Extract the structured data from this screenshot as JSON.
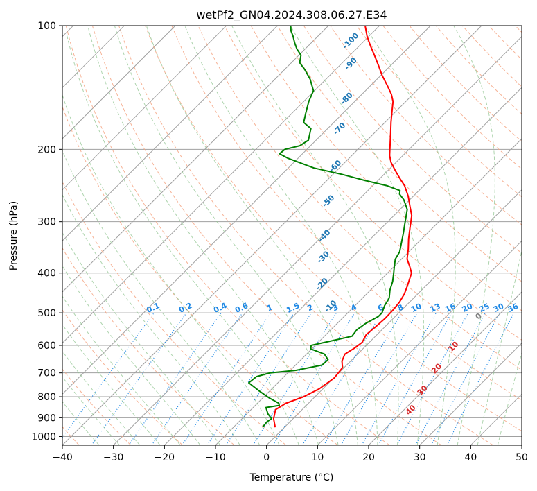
{
  "chart_data": {
    "type": "line",
    "subtype": "skew-t log-p diagram",
    "title": "wetPf2_GN04.2024.308.06.27.E34",
    "xlabel": "Temperature (°C)",
    "ylabel": "Pressure (hPa)",
    "xlim": [
      -40,
      50
    ],
    "ylim": [
      1050,
      100
    ],
    "y_scale": "log",
    "x_ticks": [
      -40,
      -30,
      -20,
      -10,
      0,
      10,
      20,
      30,
      40,
      50
    ],
    "y_ticks": [
      100,
      200,
      300,
      400,
      500,
      600,
      700,
      800,
      900,
      1000
    ],
    "grid": true,
    "series": [
      {
        "role": "temperature",
        "color": "#ff0000",
        "points": [
          [
            -1.8,
            950
          ],
          [
            -3.8,
            905
          ],
          [
            -5.2,
            860
          ],
          [
            -4.4,
            830
          ],
          [
            -2.2,
            800
          ],
          [
            -0.7,
            765
          ],
          [
            0.1,
            720
          ],
          [
            -0.3,
            680
          ],
          [
            -1.7,
            655
          ],
          [
            -2.5,
            630
          ],
          [
            -1.8,
            610
          ],
          [
            -1.4,
            590
          ],
          [
            -2.1,
            565
          ],
          [
            -1.8,
            540
          ],
          [
            -1.6,
            515
          ],
          [
            -1.7,
            490
          ],
          [
            -2.0,
            470
          ],
          [
            -2.6,
            450
          ],
          [
            -3.6,
            430
          ],
          [
            -5.3,
            400
          ],
          [
            -7.0,
            385
          ],
          [
            -8.9,
            370
          ],
          [
            -10.6,
            350
          ],
          [
            -12.6,
            330
          ],
          [
            -14.5,
            310
          ],
          [
            -16.5,
            290
          ],
          [
            -18.7,
            275
          ],
          [
            -21.0,
            260
          ],
          [
            -23.8,
            245
          ],
          [
            -26.2,
            235
          ],
          [
            -28.6,
            225
          ],
          [
            -31.0,
            215
          ],
          [
            -32.6,
            207
          ],
          [
            -34.6,
            195
          ],
          [
            -36.9,
            182
          ],
          [
            -38.8,
            172
          ],
          [
            -40.7,
            162
          ],
          [
            -42.5,
            153
          ],
          [
            -44.2,
            147
          ],
          [
            -46.7,
            140
          ],
          [
            -49.8,
            132
          ],
          [
            -52.4,
            125
          ],
          [
            -55.2,
            118
          ],
          [
            -57.8,
            112
          ],
          [
            -60.4,
            106
          ],
          [
            -62.8,
            100
          ]
        ]
      },
      {
        "role": "dewpoint",
        "color": "#008000",
        "points": [
          [
            -4.3,
            950
          ],
          [
            -4.5,
            920
          ],
          [
            -4.2,
            905
          ],
          [
            -5.9,
            880
          ],
          [
            -7.5,
            850
          ],
          [
            -5.3,
            840
          ],
          [
            -5.8,
            830
          ],
          [
            -8.8,
            805
          ],
          [
            -12.0,
            775
          ],
          [
            -15.7,
            740
          ],
          [
            -15.4,
            715
          ],
          [
            -13.5,
            700
          ],
          [
            -8.9,
            690
          ],
          [
            -4.8,
            670
          ],
          [
            -4.7,
            650
          ],
          [
            -6.5,
            630
          ],
          [
            -10.2,
            612
          ],
          [
            -10.8,
            600
          ],
          [
            -7.7,
            585
          ],
          [
            -4.6,
            570
          ],
          [
            -4.9,
            550
          ],
          [
            -4.4,
            530
          ],
          [
            -3.3,
            510
          ],
          [
            -3.3,
            500
          ],
          [
            -4.2,
            480
          ],
          [
            -4.8,
            460
          ],
          [
            -6.2,
            440
          ],
          [
            -7.3,
            420
          ],
          [
            -8.8,
            400
          ],
          [
            -10.0,
            385
          ],
          [
            -11.2,
            370
          ],
          [
            -11.8,
            355
          ],
          [
            -13.0,
            340
          ],
          [
            -14.7,
            320
          ],
          [
            -16.6,
            300
          ],
          [
            -18.6,
            280
          ],
          [
            -21.2,
            265
          ],
          [
            -23.1,
            257
          ],
          [
            -23.7,
            252
          ],
          [
            -27.3,
            245
          ],
          [
            -32.6,
            238
          ],
          [
            -38.3,
            230
          ],
          [
            -45.0,
            222
          ],
          [
            -52.1,
            210
          ],
          [
            -54.5,
            205
          ],
          [
            -54.3,
            200
          ],
          [
            -52.1,
            196
          ],
          [
            -51.5,
            190
          ],
          [
            -53.3,
            178
          ],
          [
            -55.9,
            172
          ],
          [
            -57.2,
            164
          ],
          [
            -59.0,
            153
          ],
          [
            -60.2,
            144
          ],
          [
            -63.1,
            135
          ],
          [
            -66.0,
            128
          ],
          [
            -68.4,
            123
          ],
          [
            -69.6,
            118
          ],
          [
            -71.6,
            114
          ],
          [
            -73.3,
            110
          ],
          [
            -74.9,
            106
          ],
          [
            -76.3,
            103
          ],
          [
            -77.4,
            100
          ]
        ]
      }
    ],
    "dry_adiabat_labels": [
      "-100",
      "-90",
      "-80",
      "-70",
      "-60",
      "-50",
      "-40",
      "-30",
      "-20",
      "-10"
    ],
    "moist_adiabat_labels": [
      "0",
      "10",
      "20",
      "30",
      "40"
    ],
    "mixing_ratio_labels": [
      "0.1",
      "0.2",
      "0.4",
      "0.6",
      "1",
      "1.5",
      "2",
      "3",
      "4",
      "6",
      "8",
      "10",
      "13",
      "16",
      "20",
      "25",
      "30",
      "36"
    ],
    "colors": {
      "temperature": "#ff0000",
      "dewpoint": "#008000",
      "isotherm": "#a0a0a0",
      "dry_adiabat": "#f4a582",
      "moist_adiabat": "#92c592",
      "mixing_ratio": "#1e88e5",
      "dry_adiabat_label": "#1f77b4",
      "moist_adiabat_label": "#d62728"
    }
  }
}
